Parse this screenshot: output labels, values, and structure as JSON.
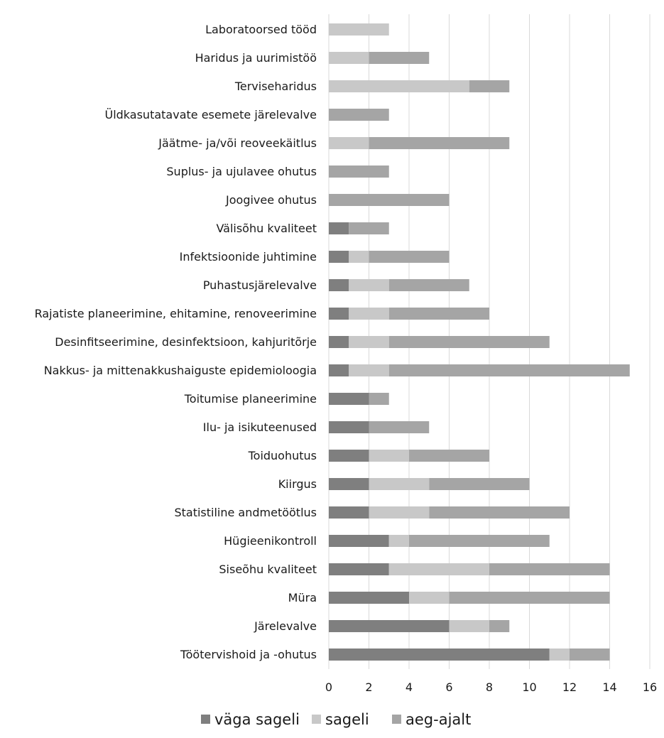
{
  "chart_data": {
    "type": "bar",
    "orientation": "horizontal",
    "stacked": true,
    "title": "",
    "xlabel": "",
    "ylabel": "",
    "xlim": [
      0,
      16
    ],
    "ticks": [
      0,
      2,
      4,
      6,
      8,
      10,
      12,
      14,
      16
    ],
    "grid": true,
    "legend_position": "bottom",
    "categories": [
      "Laboratoorsed tööd",
      "Haridus ja uurimistöö",
      "Terviseharidus",
      "Üldkasutatavate esemete järelevalve",
      "Jäätme- ja/või reoveekäitlus",
      "Suplus- ja ujulavee ohutus",
      "Joogivee ohutus",
      "Välisõhu kvaliteet",
      "Infektsioonide juhtimine",
      "Puhastusjärelevalve",
      "Rajatiste planeerimine, ehitamine, renoveerimine",
      "Desinfitseerimine, desinfektsioon, kahjuritõrje",
      "Nakkus- ja mittenakkushaiguste epidemioloogia",
      "Toitumise planeerimine",
      "Ilu- ja isikuteenused",
      "Toiduohutus",
      "Kiirgus",
      "Statistiline andmetöötlus",
      "Hügieenikontroll",
      "Siseõhu kvaliteet",
      "Müra",
      "Järelevalve",
      "Töötervishoid ja -ohutus"
    ],
    "series": [
      {
        "name": "väga sageli",
        "color": "#7f7f7f",
        "values": [
          0,
          0,
          0,
          0,
          0,
          0,
          0,
          1,
          1,
          1,
          1,
          1,
          1,
          2,
          2,
          2,
          2,
          2,
          3,
          3,
          4,
          6,
          11
        ]
      },
      {
        "name": "sageli",
        "color": "#c8c8c8",
        "values": [
          3,
          2,
          7,
          0,
          2,
          0,
          0,
          0,
          1,
          2,
          2,
          2,
          2,
          0,
          0,
          2,
          3,
          3,
          1,
          5,
          2,
          2,
          1
        ]
      },
      {
        "name": "aeg-ajalt",
        "color": "#a5a5a5",
        "values": [
          0,
          3,
          2,
          3,
          7,
          3,
          6,
          2,
          4,
          4,
          5,
          8,
          12,
          1,
          3,
          4,
          5,
          7,
          7,
          6,
          8,
          1,
          2
        ]
      }
    ]
  }
}
